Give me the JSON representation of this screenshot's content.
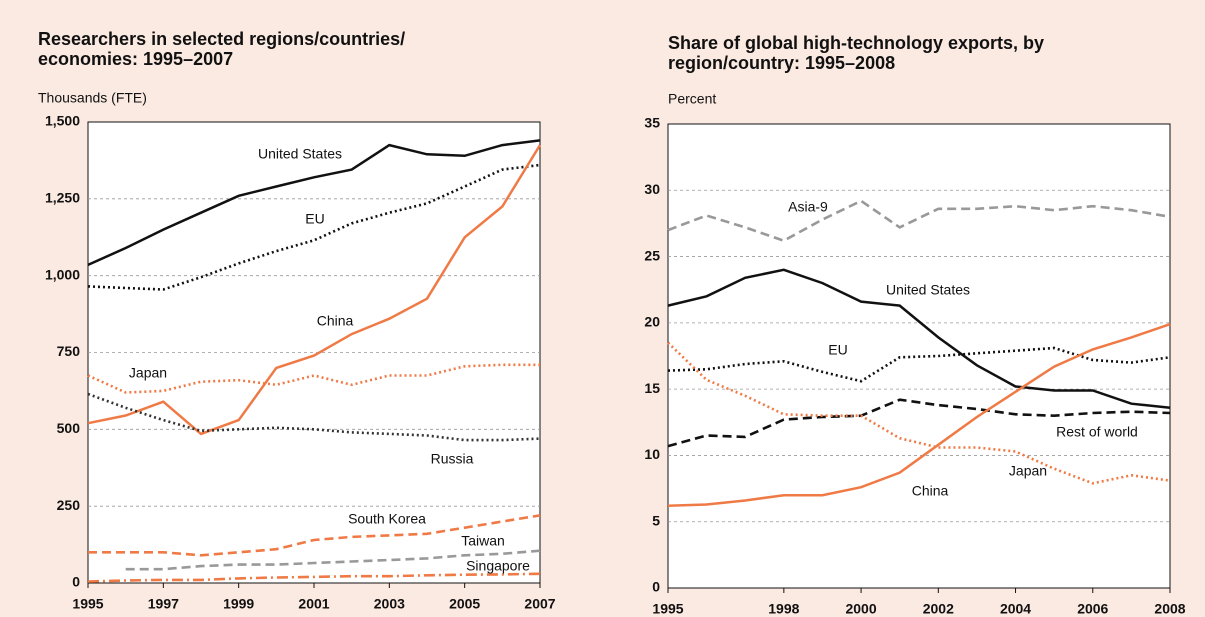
{
  "chart_data": [
    {
      "type": "line",
      "title": [
        "Researchers in selected regions/countries/",
        "economies: 1995–2007"
      ],
      "y_label": "Thousands (FTE)",
      "x": [
        1995,
        1996,
        1997,
        1998,
        1999,
        2000,
        2001,
        2002,
        2003,
        2004,
        2005,
        2006,
        2007
      ],
      "xlim": [
        1995,
        2007
      ],
      "xticks": [
        1995,
        1997,
        1999,
        2001,
        2003,
        2005,
        2007
      ],
      "ylim": [
        0,
        1500
      ],
      "yticks": [
        0,
        250,
        500,
        750,
        {
          "value": 1000,
          "label": "1,000"
        },
        {
          "value": 1250,
          "label": "1,250"
        },
        {
          "value": 1500,
          "label": "1,500"
        }
      ],
      "grid": true,
      "series": [
        {
          "name": "United States",
          "color": "#111111",
          "dash": "solid",
          "values": [
            1035,
            1090,
            1150,
            1205,
            1260,
            1290,
            1320,
            1345,
            1425,
            1395,
            1390,
            1425,
            1440
          ]
        },
        {
          "name": "EU",
          "color": "#111111",
          "dash": "dotted",
          "values": [
            965,
            960,
            955,
            995,
            1040,
            1080,
            1115,
            1170,
            1205,
            1235,
            1290,
            1345,
            1360
          ]
        },
        {
          "name": "China",
          "color": "#ef7a45",
          "dash": "solid",
          "values": [
            520,
            545,
            590,
            485,
            530,
            700,
            740,
            810,
            860,
            925,
            1125,
            1225,
            1425
          ]
        },
        {
          "name": "Japan",
          "color": "#ef7a45",
          "dash": "dotted",
          "values": [
            675,
            620,
            625,
            655,
            660,
            645,
            675,
            645,
            675,
            675,
            705,
            710,
            710
          ]
        },
        {
          "name": "Russia",
          "color": "#333333",
          "dash": "dotted",
          "values": [
            615,
            570,
            530,
            495,
            500,
            505,
            500,
            490,
            485,
            480,
            465,
            465,
            470
          ]
        },
        {
          "name": "South Korea",
          "color": "#ef7a45",
          "dash": "dashed",
          "values": [
            100,
            100,
            100,
            90,
            100,
            110,
            140,
            150,
            155,
            160,
            180,
            200,
            220
          ]
        },
        {
          "name": "Taiwan",
          "color": "#999999",
          "dash": "dashed",
          "values": [
            null,
            45,
            45,
            55,
            60,
            60,
            65,
            70,
            75,
            80,
            90,
            95,
            105
          ]
        },
        {
          "name": "Singapore",
          "color": "#ef7a45",
          "dash": "dashdot",
          "values": [
            5,
            8,
            10,
            10,
            15,
            18,
            20,
            22,
            22,
            25,
            27,
            28,
            30
          ]
        }
      ]
    },
    {
      "type": "line",
      "title": [
        "Share of global high-technology exports, by",
        "region/country: 1995–2008"
      ],
      "y_label": "Percent",
      "x": [
        1995,
        1996,
        1997,
        1998,
        1999,
        2000,
        2001,
        2002,
        2003,
        2004,
        2005,
        2006,
        2007,
        2008
      ],
      "xlim": [
        1995,
        2008
      ],
      "xticks": [
        1995,
        1998,
        2000,
        2002,
        2004,
        2006,
        2008
      ],
      "ylim": [
        0,
        35
      ],
      "yticks": [
        0,
        5,
        10,
        15,
        20,
        25,
        30,
        35
      ],
      "grid": true,
      "series": [
        {
          "name": "Asia-9",
          "color": "#999999",
          "dash": "dashed",
          "values": [
            27.0,
            28.1,
            27.2,
            26.2,
            27.8,
            29.2,
            27.2,
            28.6,
            28.6,
            28.8,
            28.5,
            28.8,
            28.5,
            28.0
          ]
        },
        {
          "name": "United States",
          "color": "#111111",
          "dash": "solid",
          "values": [
            21.3,
            22.0,
            23.4,
            24.0,
            23.0,
            21.6,
            21.3,
            18.9,
            16.8,
            15.2,
            14.9,
            14.9,
            13.9,
            13.6
          ]
        },
        {
          "name": "EU",
          "color": "#111111",
          "dash": "dotted",
          "values": [
            16.4,
            16.5,
            16.9,
            17.1,
            16.3,
            15.6,
            17.4,
            17.5,
            17.7,
            17.9,
            18.1,
            17.2,
            17.0,
            17.4
          ]
        },
        {
          "name": "Rest of world",
          "color": "#111111",
          "dash": "dashed",
          "values": [
            10.7,
            11.5,
            11.4,
            12.7,
            12.9,
            13.0,
            14.2,
            13.8,
            13.5,
            13.1,
            13.0,
            13.2,
            13.3,
            13.2
          ]
        },
        {
          "name": "Japan",
          "color": "#ef7a45",
          "dash": "dotted",
          "values": [
            18.5,
            15.7,
            14.5,
            13.1,
            13.0,
            13.0,
            11.3,
            10.6,
            10.6,
            10.3,
            9.0,
            7.9,
            8.5,
            8.1
          ]
        },
        {
          "name": "China",
          "color": "#ef7a45",
          "dash": "solid",
          "values": [
            6.2,
            6.3,
            6.6,
            7.0,
            7.0,
            7.6,
            8.7,
            10.8,
            12.9,
            14.8,
            16.7,
            18.0,
            18.9,
            19.9
          ]
        }
      ]
    }
  ]
}
